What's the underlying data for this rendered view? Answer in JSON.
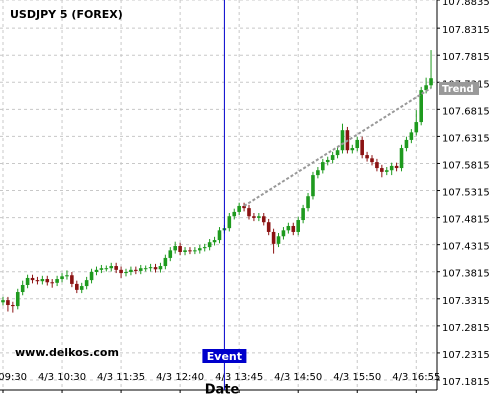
{
  "chart_data": {
    "type": "candlestick",
    "title": "USDJPY 5 (FOREX)",
    "x_label": "Date",
    "watermark": "www.delkos.com",
    "categories": [
      "4/3 09:30",
      null,
      null,
      null,
      null,
      null,
      null,
      null,
      null,
      null,
      null,
      null,
      "4/3 10:30",
      null,
      null,
      null,
      null,
      null,
      null,
      null,
      null,
      null,
      null,
      null,
      "4/3 11:35",
      null,
      null,
      null,
      null,
      null,
      null,
      null,
      null,
      null,
      null,
      null,
      "4/3 12:40",
      null,
      null,
      null,
      null,
      null,
      null,
      null,
      null,
      null,
      null,
      null,
      "4/3 13:45",
      null,
      null,
      null,
      null,
      null,
      null,
      null,
      null,
      null,
      null,
      null,
      "4/3 14:50",
      null,
      null,
      null,
      null,
      null,
      null,
      null,
      null,
      null,
      null,
      null,
      "4/3 15:50",
      null,
      null,
      null,
      null,
      null,
      null,
      null,
      null,
      null,
      null,
      null,
      "4/3 16:55",
      null,
      null,
      null
    ],
    "open": [
      107.325,
      107.329,
      107.32,
      107.318,
      107.344,
      107.357,
      107.37,
      107.366,
      107.364,
      107.368,
      107.362,
      107.361,
      107.368,
      107.373,
      107.375,
      107.359,
      107.348,
      107.355,
      107.366,
      107.381,
      107.385,
      107.388,
      107.388,
      107.392,
      107.385,
      107.379,
      107.381,
      107.385,
      107.383,
      107.388,
      107.388,
      107.39,
      107.386,
      107.392,
      107.407,
      107.421,
      107.429,
      107.418,
      107.421,
      107.42,
      107.421,
      107.425,
      107.427,
      107.436,
      107.44,
      107.458,
      107.462,
      107.484,
      107.492,
      107.503,
      107.499,
      107.484,
      107.481,
      107.484,
      107.473,
      107.455,
      107.433,
      107.447,
      107.458,
      107.466,
      107.455,
      107.477,
      107.499,
      107.521,
      107.56,
      107.569,
      107.584,
      107.588,
      107.597,
      107.606,
      107.643,
      107.606,
      107.61,
      107.625,
      107.597,
      107.591,
      107.584,
      107.573,
      107.566,
      107.569,
      107.577,
      107.573,
      107.61,
      107.625,
      107.639,
      107.658,
      107.717,
      107.726
    ],
    "high": [
      107.335,
      107.335,
      107.326,
      107.35,
      107.365,
      107.376,
      107.376,
      107.372,
      107.374,
      107.374,
      107.368,
      107.374,
      107.379,
      107.384,
      107.381,
      107.365,
      107.361,
      107.372,
      107.387,
      107.391,
      107.394,
      107.393,
      107.398,
      107.398,
      107.391,
      107.387,
      107.391,
      107.391,
      107.394,
      107.393,
      107.396,
      107.396,
      107.398,
      107.413,
      107.427,
      107.437,
      107.435,
      107.427,
      107.427,
      107.427,
      107.431,
      107.433,
      107.442,
      107.446,
      107.464,
      107.468,
      107.49,
      107.498,
      107.509,
      107.509,
      107.505,
      107.49,
      107.49,
      107.49,
      107.479,
      107.461,
      107.453,
      107.464,
      107.472,
      107.472,
      107.483,
      107.505,
      107.527,
      107.566,
      107.575,
      107.59,
      107.594,
      107.603,
      107.612,
      107.655,
      107.649,
      107.616,
      107.631,
      107.631,
      107.603,
      107.597,
      107.59,
      107.579,
      107.575,
      107.583,
      107.583,
      107.616,
      107.631,
      107.645,
      107.68,
      107.723,
      107.74,
      107.791
    ],
    "low": [
      107.319,
      107.308,
      107.306,
      107.312,
      107.338,
      107.351,
      107.36,
      107.358,
      107.358,
      107.356,
      107.352,
      107.355,
      107.362,
      107.367,
      107.353,
      107.342,
      107.342,
      107.349,
      107.36,
      107.375,
      107.379,
      107.382,
      107.382,
      107.379,
      107.37,
      107.373,
      107.375,
      107.377,
      107.377,
      107.382,
      107.382,
      107.38,
      107.38,
      107.386,
      107.401,
      107.415,
      107.412,
      107.412,
      107.414,
      107.414,
      107.415,
      107.419,
      107.421,
      107.43,
      107.434,
      107.452,
      107.456,
      107.478,
      107.486,
      107.493,
      107.478,
      107.475,
      107.475,
      107.467,
      107.449,
      107.415,
      107.427,
      107.441,
      107.452,
      107.449,
      107.449,
      107.471,
      107.493,
      107.515,
      107.554,
      107.563,
      107.578,
      107.582,
      107.591,
      107.6,
      107.6,
      107.6,
      107.604,
      107.591,
      107.585,
      107.578,
      107.567,
      107.556,
      107.56,
      107.56,
      107.567,
      107.567,
      107.604,
      107.619,
      107.633,
      107.652,
      107.711,
      107.72
    ],
    "close": [
      107.329,
      107.32,
      107.318,
      107.344,
      107.357,
      107.37,
      107.366,
      107.364,
      107.368,
      107.362,
      107.361,
      107.368,
      107.373,
      107.375,
      107.359,
      107.348,
      107.355,
      107.366,
      107.381,
      107.385,
      107.388,
      107.388,
      107.392,
      107.385,
      107.379,
      107.381,
      107.385,
      107.383,
      107.388,
      107.388,
      107.39,
      107.386,
      107.392,
      107.407,
      107.421,
      107.429,
      107.418,
      107.421,
      107.42,
      107.421,
      107.425,
      107.427,
      107.436,
      107.44,
      107.458,
      107.462,
      107.484,
      107.492,
      107.503,
      107.499,
      107.484,
      107.481,
      107.484,
      107.473,
      107.455,
      107.433,
      107.447,
      107.458,
      107.466,
      107.455,
      107.477,
      107.499,
      107.521,
      107.56,
      107.569,
      107.584,
      107.588,
      107.597,
      107.606,
      107.643,
      107.606,
      107.61,
      107.625,
      107.597,
      107.591,
      107.584,
      107.573,
      107.566,
      107.569,
      107.577,
      107.573,
      107.61,
      107.625,
      107.639,
      107.658,
      107.717,
      107.726,
      107.739
    ],
    "up_color": "#1e9a1e",
    "down_color": "#8b1212",
    "ylim": [
      107.163,
      107.8835
    ],
    "yticks": [
      107.1815,
      107.2315,
      107.2815,
      107.3315,
      107.3815,
      107.4315,
      107.4815,
      107.5315,
      107.5815,
      107.6315,
      107.6815,
      107.7315,
      107.7815,
      107.8315,
      107.8835
    ],
    "grid": true,
    "trend": {
      "label": "Trend",
      "x": [
        49,
        87
      ],
      "y": [
        107.503,
        107.721
      ],
      "color": "#999999"
    },
    "event": {
      "label": "Event",
      "x": 45,
      "color": "#0000cc"
    }
  }
}
